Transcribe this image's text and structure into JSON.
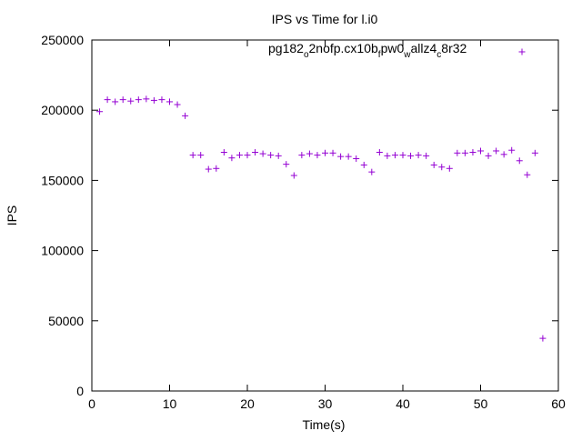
{
  "chart_data": {
    "type": "scatter",
    "title": "IPS vs Time for l.i0",
    "xlabel": "Time(s)",
    "ylabel": "IPS",
    "xlim": [
      0,
      60
    ],
    "ylim": [
      0,
      250000
    ],
    "xticks": [
      "0",
      "10",
      "20",
      "30",
      "40",
      "50",
      "60"
    ],
    "yticks": [
      "0",
      "50000",
      "100000",
      "150000",
      "200000",
      "250000"
    ],
    "grid": false,
    "legend_position": "top-right",
    "marker": "+",
    "color": "#9400d3",
    "series": [
      {
        "name": "pg182_o2nofp.cx10b_fpw0_wallz4_c8r32",
        "name_parts": [
          "pg182",
          "o",
          "2nofp.cx10b",
          "f",
          "pw0",
          "w",
          "allz4",
          "c",
          "8r32"
        ],
        "x": [
          1,
          2,
          3,
          4,
          5,
          6,
          7,
          8,
          9,
          10,
          11,
          12,
          13,
          14,
          15,
          16,
          17,
          18,
          19,
          20,
          21,
          22,
          23,
          24,
          25,
          26,
          27,
          28,
          29,
          30,
          31,
          32,
          33,
          34,
          35,
          36,
          37,
          38,
          39,
          40,
          41,
          42,
          43,
          44,
          45,
          46,
          47,
          48,
          49,
          50,
          51,
          52,
          53,
          54,
          55,
          56,
          57,
          58
        ],
        "y": [
          199000,
          207500,
          206000,
          207500,
          206500,
          207500,
          208000,
          207000,
          207500,
          206000,
          204000,
          196000,
          168000,
          168000,
          158000,
          158500,
          170000,
          166000,
          168000,
          168000,
          170000,
          169000,
          168000,
          167500,
          161500,
          153500,
          168000,
          169000,
          168000,
          169500,
          169500,
          167000,
          167000,
          165500,
          161000,
          156000,
          170000,
          167500,
          168000,
          168000,
          167500,
          168000,
          167500,
          161000,
          159500,
          158500,
          169500,
          169500,
          170000,
          171000,
          167500,
          171000,
          168500,
          171500,
          164000,
          154000,
          169500,
          37500
        ]
      }
    ]
  }
}
